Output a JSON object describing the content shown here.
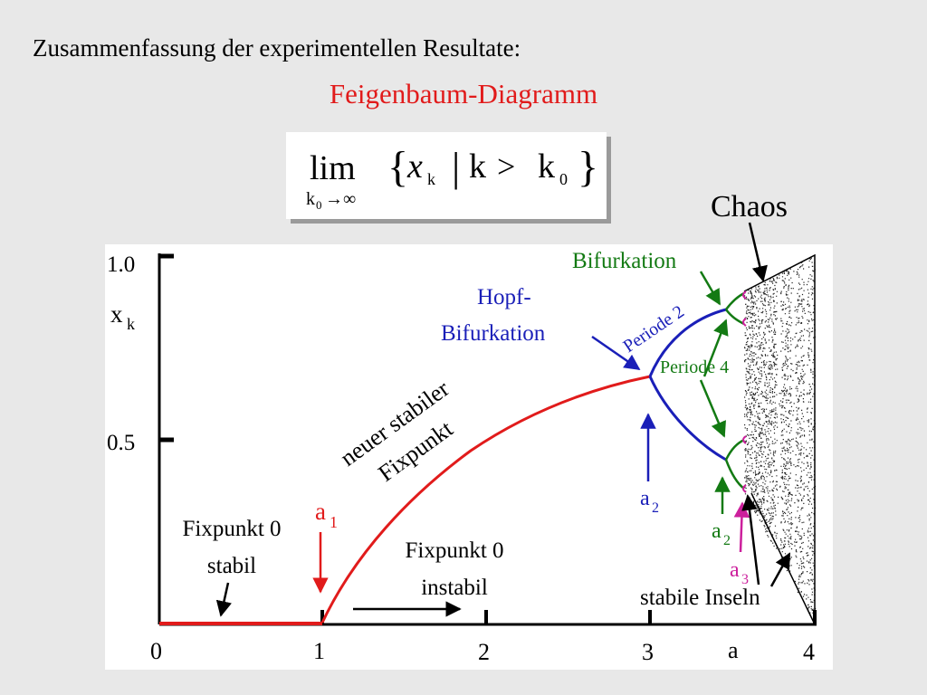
{
  "heading": "Zusammenfassung der experimentellen Resultate:",
  "title": "Feigenbaum-Diagramm",
  "formula": {
    "lim": "lim",
    "sub_k": "k",
    "sub_0": "0",
    "sub_arrow": "→∞",
    "open_brace": "{",
    "close_brace": "}",
    "x": "x",
    "x_sub": "k",
    "bar": "|",
    "k": "k",
    "gt": ">",
    "k0": "k",
    "k0_sub": "0"
  },
  "axes": {
    "y_tick_top": "1.0",
    "y_tick_mid": "0.5",
    "y_label": "x",
    "y_label_sub": "k",
    "x_ticks": [
      "0",
      "1",
      "2",
      "3",
      "a",
      "4"
    ]
  },
  "labels": {
    "chaos": "Chaos",
    "bifurkation": "Bifurkation",
    "hopf_line1": "Hopf-",
    "hopf_line2": "Bifurkation",
    "periode2": "Periode 2",
    "periode4": "Periode 4",
    "new_fix_line1": "neuer stabiler",
    "new_fix_line2": "Fixpunkt",
    "a1": "a",
    "a1_sub": "1",
    "a2_blue": "a",
    "a2_blue_sub": "2",
    "a2_green": "a",
    "a2_green_sub": "2",
    "a3": "a",
    "a3_sub": "3",
    "fix0_stable_line1": "Fixpunkt 0",
    "fix0_stable_line2": "stabil",
    "fix0_unstable_line1": "Fixpunkt 0",
    "fix0_unstable_line2": "instabil",
    "stable_islands": "stabile Inseln"
  },
  "colors": {
    "red": "#e11b1b",
    "blue": "#1a1fb8",
    "green": "#137a13",
    "magenta": "#cc1f9c"
  }
}
